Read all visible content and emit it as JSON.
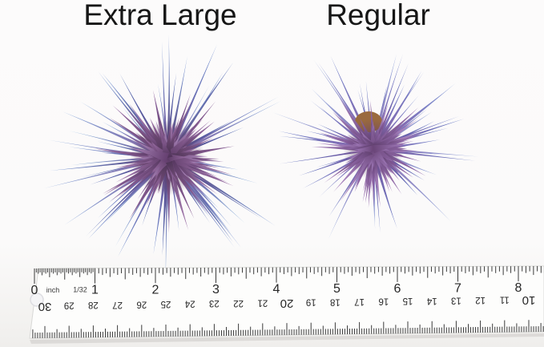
{
  "labels": {
    "left": "Extra Large",
    "right": "Regular"
  },
  "plants": [
    {
      "name": "extra-large-air-plant",
      "palette_outer": [
        [
          "#7b5898",
          "#5d83cc"
        ],
        [
          "#6a4d86",
          "#4a66b4"
        ],
        [
          "#835f9e",
          "#84a8dc"
        ],
        [
          "#5d4478",
          "#6f93d6"
        ],
        [
          "#6b5090",
          "#8ab4e0"
        ]
      ],
      "palette_mid": [
        [
          "#5f3e6b",
          "#9a6ca6"
        ],
        [
          "#6b4677",
          "#8a5f96"
        ],
        [
          "#714d80",
          "#a87fb2"
        ],
        [
          "#583a64",
          "#8f63a0"
        ]
      ],
      "palette_core": [
        [
          "#4f3258",
          "#8a5f96"
        ],
        [
          "#5c3a66",
          "#9c6fa6"
        ],
        [
          "#653f70",
          "#b08cc0"
        ],
        [
          "#473050",
          "#7d5383"
        ]
      ],
      "core_shadow_color": "#53355c"
    },
    {
      "name": "regular-air-plant",
      "palette_outer": [
        [
          "#8a63a8",
          "#6f83cc"
        ],
        [
          "#7a569a",
          "#5a6fc0"
        ],
        [
          "#9372b2",
          "#8ea6dc"
        ],
        [
          "#7e5aa0",
          "#667bc6"
        ]
      ],
      "palette_mid": [
        [
          "#6f4a80",
          "#a37cba"
        ],
        [
          "#7a5390",
          "#9168ab"
        ],
        [
          "#82589a",
          "#b493c8"
        ],
        [
          "#6a4579",
          "#9a72b0"
        ]
      ],
      "palette_core": [
        [
          "#5d3d6a",
          "#9168ab"
        ],
        [
          "#6a4578",
          "#a57fc0"
        ],
        [
          "#734e84",
          "#8a63a0"
        ],
        [
          "#563762",
          "#8f68a8"
        ]
      ],
      "core_shadow_color": "#5c3a68",
      "base_color": "#9a6a3e"
    }
  ],
  "ruler": {
    "unit_label": "inch",
    "fraction_label": "1/32",
    "inch_numbers": [
      0,
      1,
      2,
      3,
      4,
      5,
      6,
      7,
      8
    ],
    "cm_numbers": [
      30,
      29,
      28,
      27,
      26,
      25,
      24,
      23,
      22,
      21,
      20,
      19,
      18,
      17,
      16,
      15,
      14,
      13,
      12,
      11,
      10
    ],
    "colors": {
      "body": "#fdfdfc",
      "edge": "#d8d8d6",
      "tick": "#3b3b3b",
      "number": "#262626",
      "shadow": "#d5d3d0"
    }
  }
}
